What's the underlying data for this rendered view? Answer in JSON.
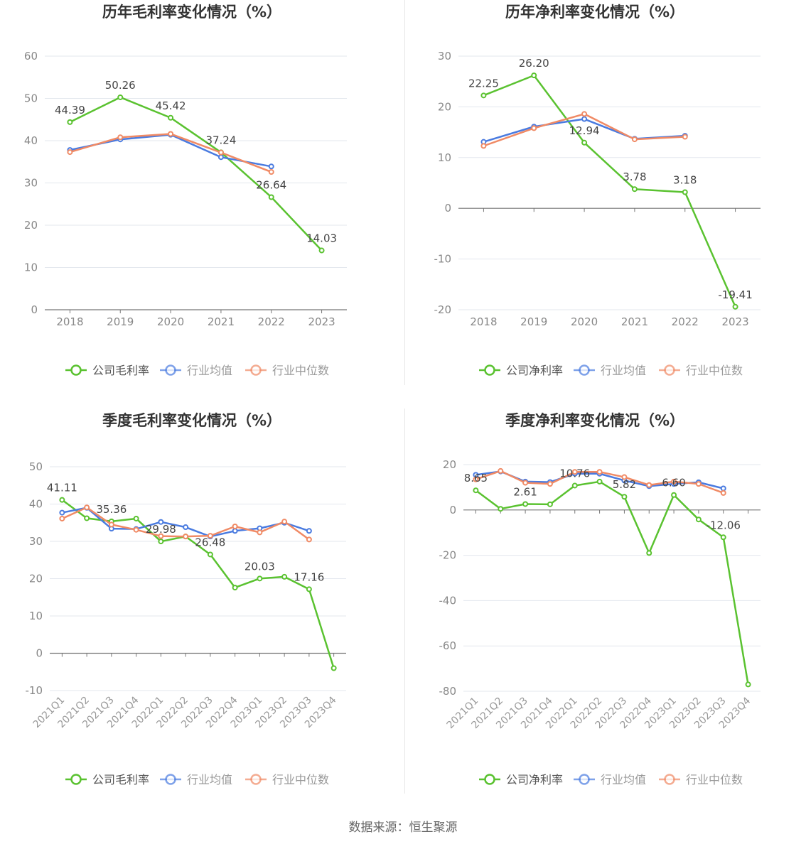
{
  "colors": {
    "company": "#5ac230",
    "avg": "#4a7be0",
    "median": "#f08a65"
  },
  "source": "数据来源：恒生聚源",
  "chart_data": [
    {
      "type": "line",
      "title": "历年毛利率变化情况（%）",
      "categories": [
        "2018",
        "2019",
        "2020",
        "2021",
        "2022",
        "2023"
      ],
      "ylim": [
        0,
        60
      ],
      "yticks": [
        0,
        10,
        20,
        30,
        40,
        50,
        60
      ],
      "rotate_xlabels": false,
      "series": [
        {
          "name": "公司毛利率",
          "key": "company",
          "values": [
            44.39,
            50.26,
            45.42,
            37.24,
            26.64,
            14.03
          ],
          "labels": [
            "44.39",
            "50.26",
            "45.42",
            "37.24",
            "26.64",
            "14.03"
          ]
        },
        {
          "name": "行业均值",
          "key": "avg",
          "values": [
            37.8,
            40.3,
            41.4,
            36.1,
            33.9,
            null
          ]
        },
        {
          "name": "行业中位数",
          "key": "median",
          "values": [
            37.3,
            40.8,
            41.6,
            37.2,
            32.6,
            null
          ]
        }
      ]
    },
    {
      "type": "line",
      "title": "历年净利率变化情况（%）",
      "categories": [
        "2018",
        "2019",
        "2020",
        "2021",
        "2022",
        "2023"
      ],
      "ylim": [
        -20,
        30
      ],
      "yticks": [
        -20,
        -10,
        0,
        10,
        20,
        30
      ],
      "rotate_xlabels": false,
      "series": [
        {
          "name": "公司净利率",
          "key": "company",
          "values": [
            22.25,
            26.2,
            12.94,
            3.78,
            3.18,
            -19.41
          ],
          "labels": [
            "22.25",
            "26.20",
            "12.94",
            "3.78",
            "3.18",
            "-19.41"
          ]
        },
        {
          "name": "行业均值",
          "key": "avg",
          "values": [
            13.1,
            16.1,
            17.6,
            13.7,
            14.3,
            null
          ]
        },
        {
          "name": "行业中位数",
          "key": "median",
          "values": [
            12.3,
            15.8,
            18.6,
            13.6,
            14.1,
            null
          ]
        }
      ]
    },
    {
      "type": "line",
      "title": "季度毛利率变化情况（%）",
      "categories": [
        "2021Q1",
        "2021Q2",
        "2021Q3",
        "2021Q4",
        "2022Q1",
        "2022Q2",
        "2022Q3",
        "2022Q4",
        "2023Q1",
        "2023Q2",
        "2023Q3",
        "2023Q4"
      ],
      "ylim": [
        -10,
        50
      ],
      "yticks": [
        -10,
        0,
        10,
        20,
        30,
        40,
        50
      ],
      "rotate_xlabels": true,
      "series": [
        {
          "name": "公司毛利率",
          "key": "company",
          "values": [
            41.11,
            36.2,
            35.36,
            36.1,
            29.98,
            31.3,
            26.48,
            17.6,
            20.03,
            20.5,
            17.16,
            -4.0
          ],
          "labels": [
            "41.11",
            "",
            "35.36",
            "",
            "29.98",
            "",
            "26.48",
            "",
            "20.03",
            "",
            "17.16",
            ""
          ]
        },
        {
          "name": "行业均值",
          "key": "avg",
          "values": [
            37.7,
            39.0,
            33.4,
            33.3,
            35.2,
            33.8,
            31.3,
            32.8,
            33.5,
            35.0,
            32.8,
            null
          ]
        },
        {
          "name": "行业中位数",
          "key": "median",
          "values": [
            36.1,
            39.1,
            34.5,
            33.1,
            31.4,
            31.3,
            31.5,
            34.0,
            32.4,
            35.3,
            30.5,
            null
          ]
        }
      ]
    },
    {
      "type": "line",
      "title": "季度净利率变化情况（%）",
      "categories": [
        "2021Q1",
        "2021Q2",
        "2021Q3",
        "2021Q4",
        "2022Q1",
        "2022Q2",
        "2022Q3",
        "2022Q4",
        "2023Q1",
        "2023Q2",
        "2023Q3",
        "2023Q4"
      ],
      "ylim": [
        -80,
        20
      ],
      "yticks": [
        -80,
        -60,
        -40,
        -20,
        0,
        20
      ],
      "rotate_xlabels": true,
      "series": [
        {
          "name": "公司净利率",
          "key": "company",
          "values": [
            8.65,
            0.5,
            2.61,
            2.5,
            10.76,
            12.5,
            5.82,
            -19.0,
            6.6,
            -4.2,
            -12.06,
            -77.0
          ],
          "labels": [
            "8.65",
            "",
            "2.61",
            "",
            "10.76",
            "",
            "5.82",
            "",
            "6.60",
            "",
            "-12.06",
            ""
          ]
        },
        {
          "name": "行业均值",
          "key": "avg",
          "values": [
            15.5,
            17.0,
            12.5,
            12.3,
            16.0,
            16.0,
            13.0,
            10.5,
            11.5,
            12.2,
            9.5,
            null
          ]
        },
        {
          "name": "行业中位数",
          "key": "median",
          "values": [
            13.5,
            17.2,
            12.0,
            11.5,
            16.8,
            16.8,
            14.5,
            11.0,
            12.5,
            11.5,
            7.5,
            null
          ]
        }
      ]
    }
  ]
}
